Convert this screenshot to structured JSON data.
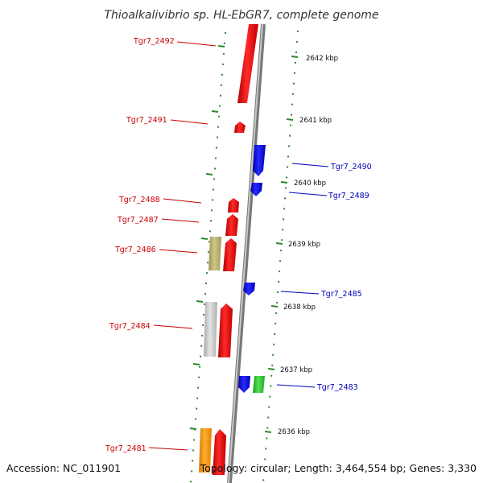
{
  "title": "Thioalkalivibrio sp. HL-EbGR7, complete genome",
  "accession": "Accession: NC_011901",
  "topology": "Topology: circular; Length: 3,464,554 bp; Genes: 3,330",
  "colors": {
    "forward": "#ee0000",
    "reverse": "#0000ee",
    "backbone": "#9a9a9a",
    "tick": "#2a8a2a",
    "label_forward": "#cc0000",
    "label_reverse": "#0000bb",
    "khaki": "#b8b070",
    "gray": "#c8c8c8",
    "green": "#33cc33",
    "orange": "#ff9900"
  },
  "scale_labels": [
    "2642 kbp",
    "2641 kbp",
    "2640 kbp",
    "2639 kbp",
    "2638 kbp",
    "2637 kbp",
    "2636 kbp"
  ],
  "gene_labels": {
    "g2492": "Tgr7_2492",
    "g2491": "Tgr7_2491",
    "g2490": "Tgr7_2490",
    "g2489": "Tgr7_2489",
    "g2488": "Tgr7_2488",
    "g2487": "Tgr7_2487",
    "g2486": "Tgr7_2486",
    "g2485": "Tgr7_2485",
    "g2484": "Tgr7_2484",
    "g2483": "Tgr7_2483",
    "g2481": "Tgr7_2481"
  }
}
